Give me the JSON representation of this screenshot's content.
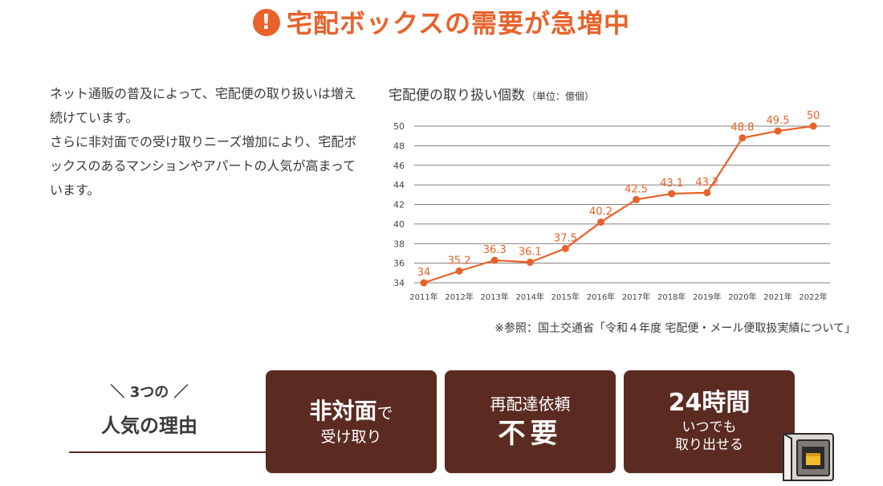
{
  "header": {
    "title": "宅配ボックスの需要が急増中",
    "icon": "exclamation-circle-icon"
  },
  "intro": {
    "paragraph1": "ネット通販の普及によって、宅配便の取り扱いは増え続けています。",
    "paragraph2": "さらに非対面での受け取りニーズ増加により、宅配ボックスのあるマンションやアパートの人気が高まっています。"
  },
  "chart_title": {
    "main": "宅配便の取り扱い個数",
    "unit": "（単位：億個）"
  },
  "chart_data": {
    "type": "line",
    "title": "宅配便の取り扱い個数（単位：億個）",
    "categories": [
      "2011年",
      "2012年",
      "2013年",
      "2014年",
      "2015年",
      "2016年",
      "2017年",
      "2018年",
      "2019年",
      "2020年",
      "2021年",
      "2022年"
    ],
    "values": [
      34,
      35.2,
      36.3,
      36.1,
      37.5,
      40.2,
      42.5,
      43.1,
      43.2,
      48.8,
      49.5,
      50
    ],
    "data_labels": [
      "34",
      "35.2",
      "36.3",
      "36.1",
      "37.5",
      "40.2",
      "42.5",
      "43.1",
      "43.2",
      "48.8",
      "49.5",
      "50"
    ],
    "yticks": [
      "34",
      "36",
      "38",
      "40",
      "42",
      "44",
      "46",
      "48",
      "50"
    ],
    "ylim": [
      34,
      50
    ],
    "grid": true,
    "line_color": "#e8622a",
    "grid_color": "#5a5a5a"
  },
  "source_note": "※参照：国土交通省「令和４年度 宅配便・メール便取扱実績について」",
  "reasons": {
    "small": "＼ 3つの ／",
    "big": "人気の理由",
    "cards": [
      {
        "main": "非対面",
        "suffix": "で",
        "sub": "受け取り"
      },
      {
        "top": "再配達依頼",
        "main": "不要"
      },
      {
        "main": "24時間",
        "sub1": "いつでも",
        "sub2": "取り出せる"
      }
    ]
  },
  "colors": {
    "accent": "#e8622a",
    "brown": "#5b2b22",
    "text": "#3a3a3a"
  },
  "illustration": {
    "icon": "delivery-locker-icon"
  }
}
